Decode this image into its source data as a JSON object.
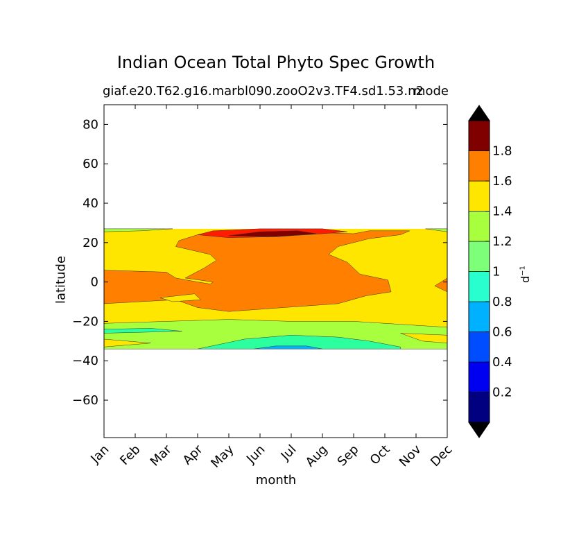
{
  "chart_data": {
    "type": "contour",
    "title": "Indian Ocean Total Phyto Spec Growth",
    "subtitle_left": "giaf.e20.T62.g16.marbl090.zooO2v3.TF4.sd1.53.n2",
    "subtitle_right": "mode",
    "xlabel": "month",
    "ylabel": "latitude",
    "x_categories": [
      "Jan",
      "Feb",
      "Mar",
      "Apr",
      "May",
      "Jun",
      "Jul",
      "Aug",
      "Sep",
      "Oct",
      "Nov",
      "Dec"
    ],
    "y_ticks": [
      80,
      60,
      40,
      20,
      0,
      -20,
      -40,
      -60
    ],
    "ylim": [
      -79,
      90
    ],
    "data_lat_range": [
      -34,
      27
    ],
    "colorbar": {
      "label": "d",
      "label_exponent": "−1",
      "levels": [
        0,
        0.2,
        0.4,
        0.6,
        0.8,
        1.0,
        1.2,
        1.4,
        1.6,
        1.8,
        2.0
      ],
      "tick_labels": [
        "0.2",
        "0.4",
        "0.6",
        "0.8",
        "1",
        "1.2",
        "1.4",
        "1.6",
        "1.8"
      ],
      "colors": [
        "#000080",
        "#0000f1",
        "#004dff",
        "#00b1ff",
        "#29ffce",
        "#7dff7a",
        "#cefd2a",
        "#ffc400",
        "#ff6800",
        "#f10800",
        "#800000"
      ],
      "extend_min_color": "#000000",
      "extend_max_color": "#000000"
    },
    "regions": [
      {
        "name": "south-band-1.2-1.4",
        "color": "#a8ff3e",
        "level": "1-1.2"
      },
      {
        "name": "yellow-background",
        "color": "#ffe600",
        "level": "1.2-1.4"
      },
      {
        "name": "orange-core",
        "color": "#ff8000",
        "level": "1.4-1.6"
      },
      {
        "name": "red-peak",
        "color": "#ff1a00",
        "level": "1.6-1.8"
      },
      {
        "name": "darkred-peak",
        "color": "#800000",
        "level": ">1.8"
      },
      {
        "name": "cyan-south",
        "color": "#2bff9e",
        "level": "0.8-1"
      },
      {
        "name": "blue-south",
        "color": "#00b4ff",
        "level": "0.6-0.8"
      }
    ]
  }
}
